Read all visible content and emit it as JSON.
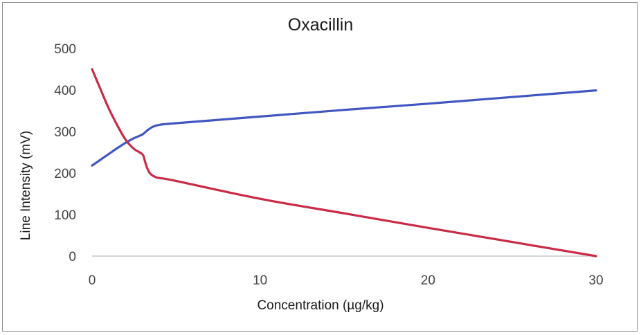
{
  "chart_data": {
    "type": "line",
    "title": "Oxacillin",
    "xlabel": "Concentration (µg/kg)",
    "ylabel": "Line Intensity (mV)",
    "xlim": [
      0,
      30
    ],
    "ylim": [
      0,
      500
    ],
    "x_ticks": [
      0,
      10,
      20,
      30
    ],
    "y_ticks": [
      0,
      100,
      200,
      300,
      400,
      500
    ],
    "grid": false,
    "legend": "none",
    "series": [
      {
        "color": "#4156c0",
        "x": [
          0,
          0.5,
          1,
          1.5,
          2,
          2.5,
          3,
          3.3,
          3.6,
          4,
          5,
          10,
          15,
          20,
          25,
          30
        ],
        "y": [
          218,
          232,
          246,
          260,
          273,
          284,
          293,
          303,
          311,
          316,
          320,
          336,
          352,
          367,
          383,
          399
        ]
      },
      {
        "color": "#c92a45",
        "x": [
          0,
          0.5,
          1,
          1.5,
          2,
          2.5,
          3,
          3.15,
          3.3,
          3.5,
          3.8,
          4,
          5,
          10,
          15,
          20,
          25,
          30
        ],
        "y": [
          450,
          402,
          355,
          315,
          280,
          258,
          245,
          228,
          210,
          197,
          190,
          188,
          181,
          138,
          103,
          68,
          34,
          0
        ]
      }
    ]
  }
}
